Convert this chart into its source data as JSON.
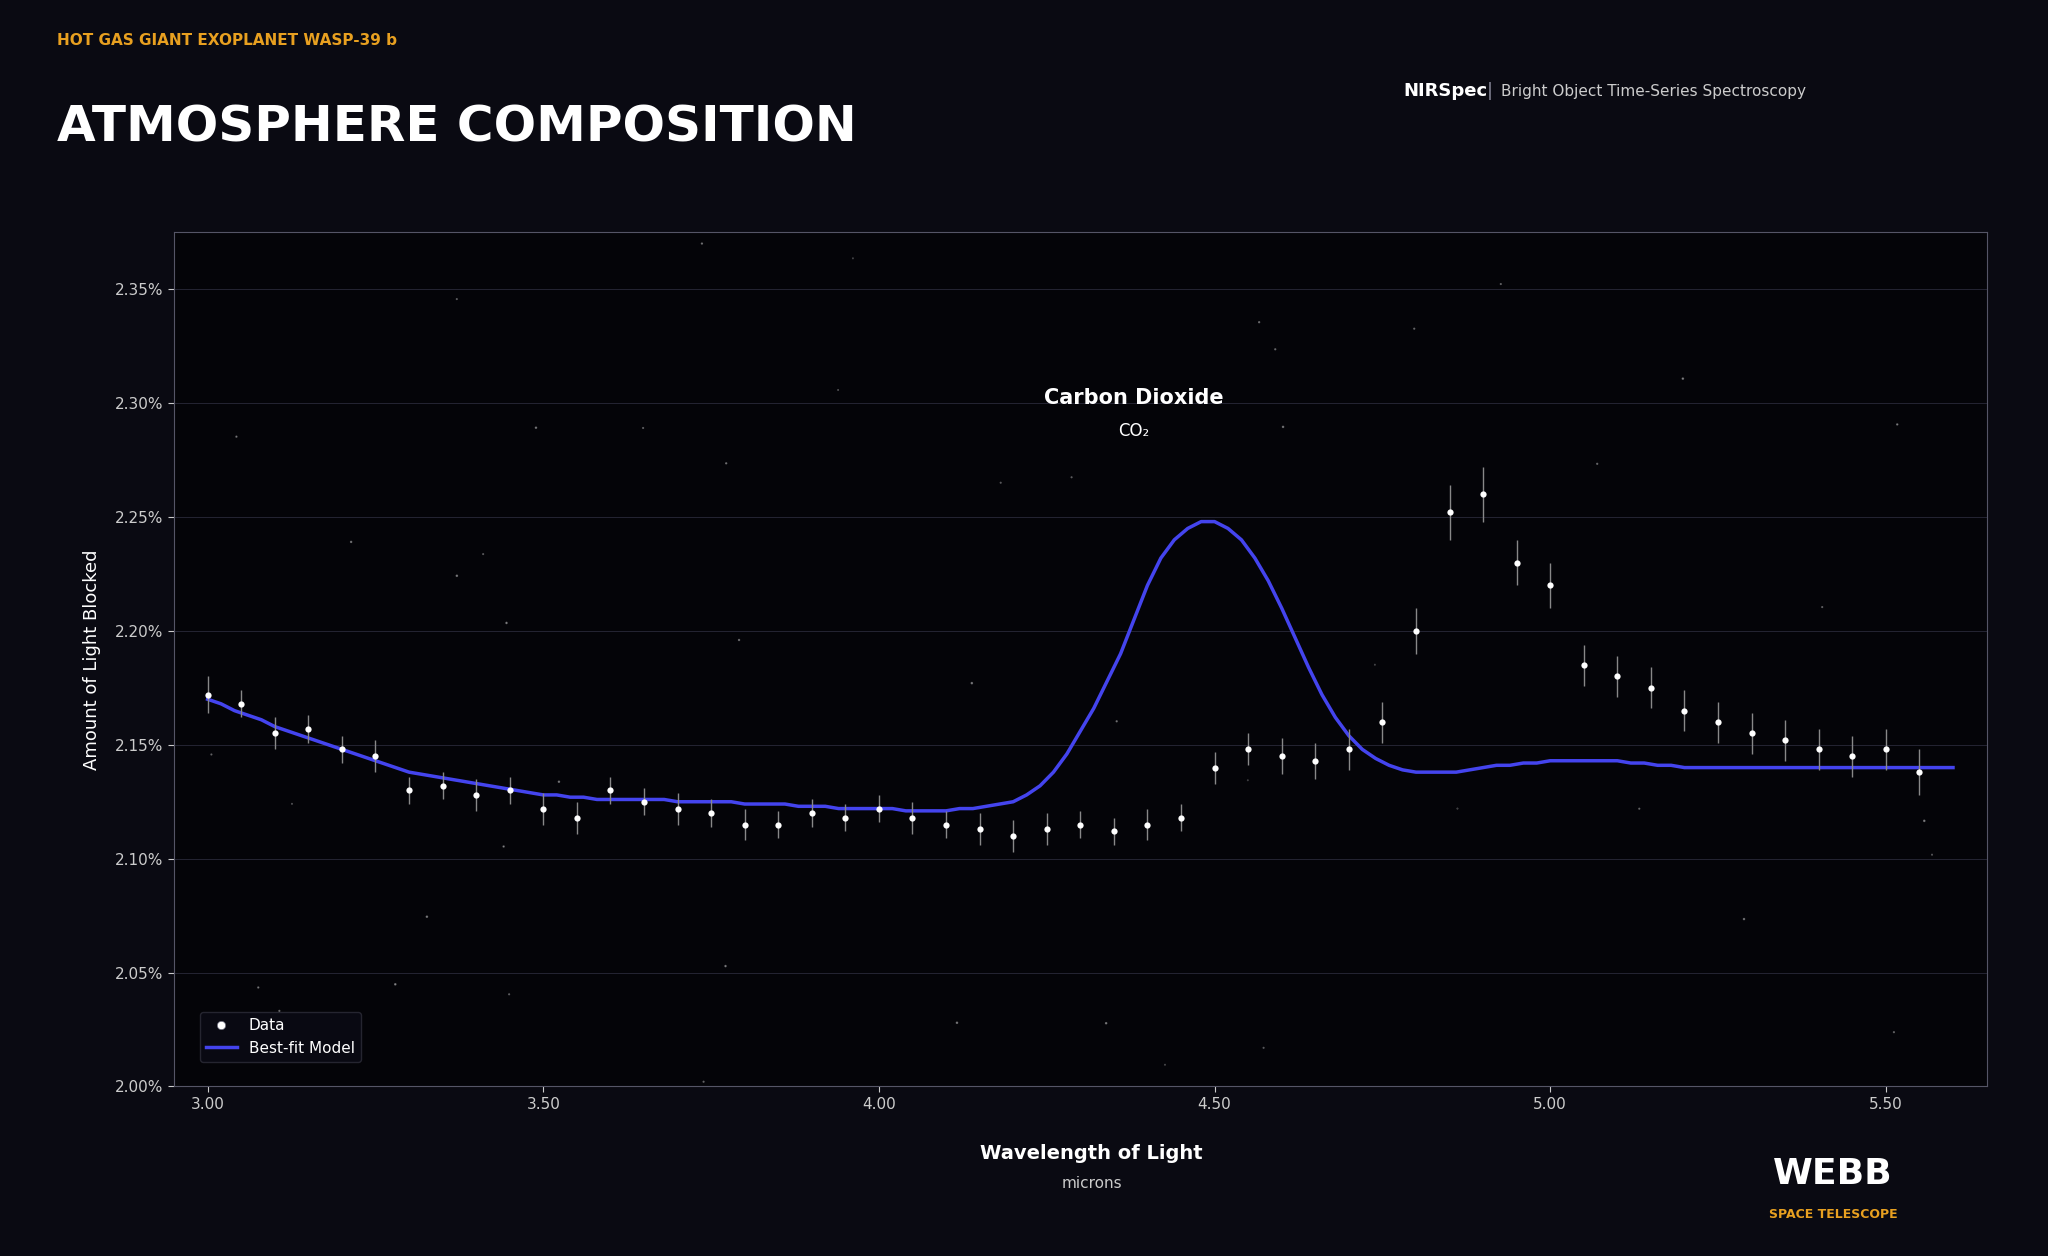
{
  "title_sub": "HOT GAS GIANT EXOPLANET WASP-39 b",
  "title_main": "ATMOSPHERE COMPOSITION",
  "nirspec_label": "NIRSpec",
  "nirspec_desc": "Bright Object Time-Series Spectroscopy",
  "ylabel": "Amount of Light Blocked",
  "xlabel": "Wavelength of Light",
  "xlabel_sub": "microns",
  "co2_label": "Carbon Dioxide",
  "co2_sub": "CO₂",
  "legend_data": "Data",
  "legend_model": "Best-fit Model",
  "bg_color": "#0a0a12",
  "axis_color": "#cccccc",
  "text_color": "#ffffff",
  "title_sub_color": "#e8a020",
  "model_color": "#4444ee",
  "data_color": "#ffffff",
  "webb_orange": "#e8a020",
  "ylim": [
    2.0,
    2.375
  ],
  "xlim": [
    2.95,
    5.65
  ],
  "yticks": [
    2.0,
    2.05,
    2.1,
    2.15,
    2.2,
    2.25,
    2.3,
    2.35
  ],
  "xticks": [
    3.0,
    3.5,
    4.0,
    4.5,
    5.0,
    5.5
  ],
  "data_x": [
    3.0,
    3.05,
    3.1,
    3.15,
    3.2,
    3.25,
    3.3,
    3.35,
    3.4,
    3.45,
    3.5,
    3.55,
    3.6,
    3.65,
    3.7,
    3.75,
    3.8,
    3.85,
    3.9,
    3.95,
    4.0,
    4.05,
    4.1,
    4.15,
    4.2,
    4.25,
    4.3,
    4.35,
    4.4,
    4.45,
    4.5,
    4.55,
    4.6,
    4.65,
    4.7,
    4.75,
    4.8,
    4.85,
    4.9,
    4.95,
    5.0,
    5.05,
    5.1,
    5.15,
    5.2,
    5.25,
    5.3,
    5.35,
    5.4,
    5.45,
    5.5,
    5.55
  ],
  "data_y": [
    2.172,
    2.168,
    2.155,
    2.157,
    2.148,
    2.145,
    2.13,
    2.132,
    2.128,
    2.13,
    2.122,
    2.118,
    2.13,
    2.125,
    2.122,
    2.12,
    2.115,
    2.115,
    2.12,
    2.118,
    2.122,
    2.118,
    2.115,
    2.113,
    2.11,
    2.113,
    2.115,
    2.112,
    2.115,
    2.118,
    2.14,
    2.148,
    2.145,
    2.143,
    2.148,
    2.16,
    2.2,
    2.252,
    2.26,
    2.23,
    2.22,
    2.185,
    2.18,
    2.175,
    2.165,
    2.16,
    2.155,
    2.152,
    2.148,
    2.145,
    2.148,
    2.138
  ],
  "data_yerr": [
    0.008,
    0.006,
    0.007,
    0.006,
    0.006,
    0.007,
    0.006,
    0.006,
    0.007,
    0.006,
    0.007,
    0.007,
    0.006,
    0.006,
    0.007,
    0.006,
    0.007,
    0.006,
    0.006,
    0.006,
    0.006,
    0.007,
    0.006,
    0.007,
    0.007,
    0.007,
    0.006,
    0.006,
    0.007,
    0.006,
    0.007,
    0.007,
    0.008,
    0.008,
    0.009,
    0.009,
    0.01,
    0.012,
    0.012,
    0.01,
    0.01,
    0.009,
    0.009,
    0.009,
    0.009,
    0.009,
    0.009,
    0.009,
    0.009,
    0.009,
    0.009,
    0.01
  ],
  "model_x": [
    3.0,
    3.02,
    3.04,
    3.06,
    3.08,
    3.1,
    3.12,
    3.14,
    3.16,
    3.18,
    3.2,
    3.22,
    3.24,
    3.26,
    3.28,
    3.3,
    3.32,
    3.34,
    3.36,
    3.38,
    3.4,
    3.42,
    3.44,
    3.46,
    3.48,
    3.5,
    3.52,
    3.54,
    3.56,
    3.58,
    3.6,
    3.62,
    3.64,
    3.66,
    3.68,
    3.7,
    3.72,
    3.74,
    3.76,
    3.78,
    3.8,
    3.82,
    3.84,
    3.86,
    3.88,
    3.9,
    3.92,
    3.94,
    3.96,
    3.98,
    4.0,
    4.02,
    4.04,
    4.06,
    4.08,
    4.1,
    4.12,
    4.14,
    4.16,
    4.18,
    4.2,
    4.22,
    4.24,
    4.26,
    4.28,
    4.3,
    4.32,
    4.34,
    4.36,
    4.38,
    4.4,
    4.42,
    4.44,
    4.46,
    4.48,
    4.5,
    4.52,
    4.54,
    4.56,
    4.58,
    4.6,
    4.62,
    4.64,
    4.66,
    4.68,
    4.7,
    4.72,
    4.74,
    4.76,
    4.78,
    4.8,
    4.82,
    4.84,
    4.86,
    4.88,
    4.9,
    4.92,
    4.94,
    4.96,
    4.98,
    5.0,
    5.02,
    5.04,
    5.06,
    5.08,
    5.1,
    5.12,
    5.14,
    5.16,
    5.18,
    5.2,
    5.22,
    5.24,
    5.26,
    5.28,
    5.3,
    5.32,
    5.34,
    5.36,
    5.38,
    5.4,
    5.42,
    5.44,
    5.46,
    5.48,
    5.5,
    5.52,
    5.54,
    5.56,
    5.58,
    5.6
  ],
  "model_y": [
    2.17,
    2.168,
    2.165,
    2.163,
    2.161,
    2.158,
    2.156,
    2.154,
    2.152,
    2.15,
    2.148,
    2.146,
    2.144,
    2.142,
    2.14,
    2.138,
    2.137,
    2.136,
    2.135,
    2.134,
    2.133,
    2.132,
    2.131,
    2.13,
    2.129,
    2.128,
    2.128,
    2.127,
    2.127,
    2.126,
    2.126,
    2.126,
    2.126,
    2.126,
    2.126,
    2.125,
    2.125,
    2.125,
    2.125,
    2.125,
    2.124,
    2.124,
    2.124,
    2.124,
    2.123,
    2.123,
    2.123,
    2.122,
    2.122,
    2.122,
    2.122,
    2.122,
    2.121,
    2.121,
    2.121,
    2.121,
    2.122,
    2.122,
    2.123,
    2.124,
    2.125,
    2.128,
    2.132,
    2.138,
    2.146,
    2.156,
    2.166,
    2.178,
    2.19,
    2.205,
    2.22,
    2.232,
    2.24,
    2.245,
    2.248,
    2.248,
    2.245,
    2.24,
    2.232,
    2.222,
    2.21,
    2.197,
    2.184,
    2.172,
    2.162,
    2.154,
    2.148,
    2.144,
    2.141,
    2.139,
    2.138,
    2.138,
    2.138,
    2.138,
    2.139,
    2.14,
    2.141,
    2.141,
    2.142,
    2.142,
    2.143,
    2.143,
    2.143,
    2.143,
    2.143,
    2.143,
    2.142,
    2.142,
    2.141,
    2.141,
    2.14,
    2.14,
    2.14,
    2.14,
    2.14,
    2.14,
    2.14,
    2.14,
    2.14,
    2.14,
    2.14,
    2.14,
    2.14,
    2.14,
    2.14,
    2.14,
    2.14,
    2.14,
    2.14,
    2.14,
    2.14
  ]
}
